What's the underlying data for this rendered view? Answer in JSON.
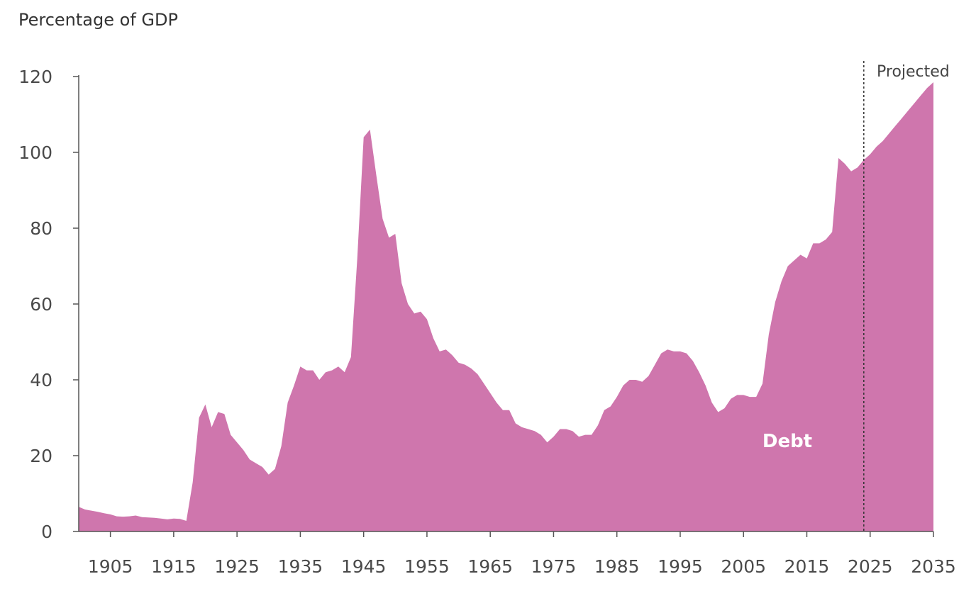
{
  "chart_data": {
    "type": "area",
    "title": "",
    "ylabel": "Percentage of GDP",
    "xlabel": "",
    "ylim": [
      0,
      120
    ],
    "xlim": [
      1900,
      2035
    ],
    "yticks": [
      0,
      20,
      40,
      60,
      80,
      100,
      120
    ],
    "xticks": [
      1905,
      1915,
      1925,
      1935,
      1945,
      1955,
      1965,
      1975,
      1985,
      1995,
      2005,
      2015,
      2025,
      2035
    ],
    "grid": false,
    "projected_from": 2024,
    "annotations": {
      "projected": "Projected",
      "series_label": "Debt"
    },
    "color": "#cf76ad",
    "series": [
      {
        "name": "Debt",
        "x": [
          1900,
          1901,
          1902,
          1903,
          1904,
          1905,
          1906,
          1907,
          1908,
          1909,
          1910,
          1911,
          1912,
          1913,
          1914,
          1915,
          1916,
          1917,
          1918,
          1919,
          1920,
          1921,
          1922,
          1923,
          1924,
          1925,
          1926,
          1927,
          1928,
          1929,
          1930,
          1931,
          1932,
          1933,
          1934,
          1935,
          1936,
          1937,
          1938,
          1939,
          1940,
          1941,
          1942,
          1943,
          1944,
          1945,
          1946,
          1947,
          1948,
          1949,
          1950,
          1951,
          1952,
          1953,
          1954,
          1955,
          1956,
          1957,
          1958,
          1959,
          1960,
          1961,
          1962,
          1963,
          1964,
          1965,
          1966,
          1967,
          1968,
          1969,
          1970,
          1971,
          1972,
          1973,
          1974,
          1975,
          1976,
          1977,
          1978,
          1979,
          1980,
          1981,
          1982,
          1983,
          1984,
          1985,
          1986,
          1987,
          1988,
          1989,
          1990,
          1991,
          1992,
          1993,
          1994,
          1995,
          1996,
          1997,
          1998,
          1999,
          2000,
          2001,
          2002,
          2003,
          2004,
          2005,
          2006,
          2007,
          2008,
          2009,
          2010,
          2011,
          2012,
          2013,
          2014,
          2015,
          2016,
          2017,
          2018,
          2019,
          2020,
          2021,
          2022,
          2023,
          2024,
          2025,
          2026,
          2027,
          2028,
          2029,
          2030,
          2031,
          2032,
          2033,
          2034,
          2035
        ],
        "values": [
          6.5,
          5.8,
          5.5,
          5.2,
          4.8,
          4.5,
          4.0,
          3.9,
          4.0,
          4.2,
          3.8,
          3.7,
          3.6,
          3.4,
          3.2,
          3.4,
          3.3,
          2.8,
          13,
          30,
          33.5,
          27.5,
          31.5,
          31,
          25.5,
          23.5,
          21.5,
          19,
          18,
          17,
          15,
          16.5,
          22.5,
          34,
          38.5,
          43.5,
          42.5,
          42.5,
          40,
          42,
          42.5,
          43.5,
          42,
          46,
          72,
          104,
          106,
          94,
          82.5,
          77.5,
          78.5,
          65.5,
          60,
          57.5,
          58,
          56,
          51,
          47.5,
          48,
          46.5,
          44.5,
          44,
          43,
          41.5,
          39,
          36.5,
          34,
          32,
          32,
          28.5,
          27.5,
          27,
          26.5,
          25.5,
          23.5,
          25,
          27,
          27,
          26.5,
          25,
          25.5,
          25.5,
          28,
          32,
          33,
          35.5,
          38.5,
          40,
          40,
          39.5,
          41,
          44,
          47,
          48,
          47.5,
          47.5,
          47,
          45,
          42,
          38.5,
          34,
          31.5,
          32.5,
          35,
          36,
          36,
          35.5,
          35.5,
          39,
          52,
          60.5,
          66,
          70,
          71.5,
          73,
          72,
          76,
          76,
          77,
          79,
          98.5,
          97,
          95,
          96,
          98,
          99.5,
          101.5,
          103,
          105,
          107,
          109,
          111,
          113,
          115,
          117,
          118.5
        ]
      }
    ]
  }
}
